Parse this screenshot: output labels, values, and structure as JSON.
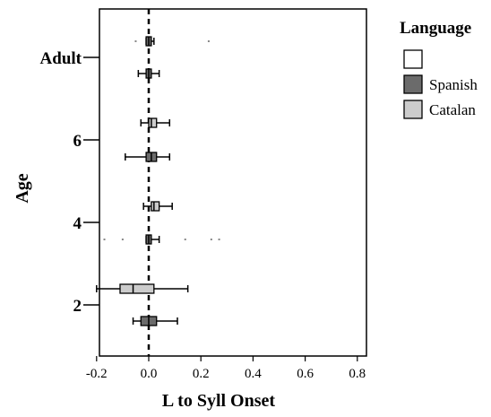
{
  "chart_data": {
    "type": "boxplot",
    "orientation": "horizontal",
    "xlabel": "L to Syll Onset",
    "ylabel": "Age",
    "xlim": [
      -0.2,
      0.85
    ],
    "x_ticks": [
      "-0.2",
      "0.0",
      "0.2",
      "0.4",
      "0.6",
      "0.8"
    ],
    "y_tick_labels": [
      "2",
      "4",
      "6",
      "Adult"
    ],
    "reference_line": 0.0,
    "legend": {
      "title": "Language",
      "entries": [
        {
          "name": "",
          "color": "#ffffff"
        },
        {
          "name": "Spanish",
          "color": "#6b6b6b"
        },
        {
          "name": "Catalan",
          "color": "#cccccc"
        }
      ]
    },
    "groups": [
      {
        "age": "Adult",
        "language": "Catalan",
        "whisker_low": null,
        "q1": null,
        "median": null,
        "q3": null,
        "whisker_high": null,
        "outliers": [
          -0.05,
          0.23
        ]
      },
      {
        "age": "Adult",
        "language": "Spanish",
        "whisker_low": -0.01,
        "q1": -0.01,
        "median": 0.0,
        "q3": 0.01,
        "whisker_high": 0.02,
        "outliers": []
      },
      {
        "age": "Adult",
        "language": "Spanish",
        "whisker_low": -0.04,
        "q1": -0.01,
        "median": 0.0,
        "q3": 0.01,
        "whisker_high": 0.04,
        "outliers": []
      },
      {
        "age": "6",
        "language": "Catalan",
        "whisker_low": -0.03,
        "q1": 0.0,
        "median": 0.01,
        "q3": 0.03,
        "whisker_high": 0.08,
        "outliers": []
      },
      {
        "age": "6",
        "language": "Spanish",
        "whisker_low": -0.09,
        "q1": -0.01,
        "median": 0.01,
        "q3": 0.03,
        "whisker_high": 0.08,
        "outliers": []
      },
      {
        "age": "4",
        "language": "Catalan",
        "whisker_low": -0.02,
        "q1": 0.01,
        "median": 0.02,
        "q3": 0.04,
        "whisker_high": 0.09,
        "outliers": []
      },
      {
        "age": "4",
        "language": "Spanish",
        "whisker_low": -0.01,
        "q1": -0.01,
        "median": 0.0,
        "q3": 0.01,
        "whisker_high": 0.04,
        "outliers": [
          -0.17,
          -0.1,
          0.14,
          0.24,
          0.27
        ]
      },
      {
        "age": "2",
        "language": "Catalan",
        "whisker_low": -0.2,
        "q1": -0.11,
        "median": -0.06,
        "q3": 0.02,
        "whisker_high": 0.15,
        "outliers": []
      },
      {
        "age": "2",
        "language": "Spanish",
        "whisker_low": -0.06,
        "q1": -0.03,
        "median": 0.0,
        "q3": 0.03,
        "whisker_high": 0.11,
        "outliers": []
      }
    ]
  }
}
